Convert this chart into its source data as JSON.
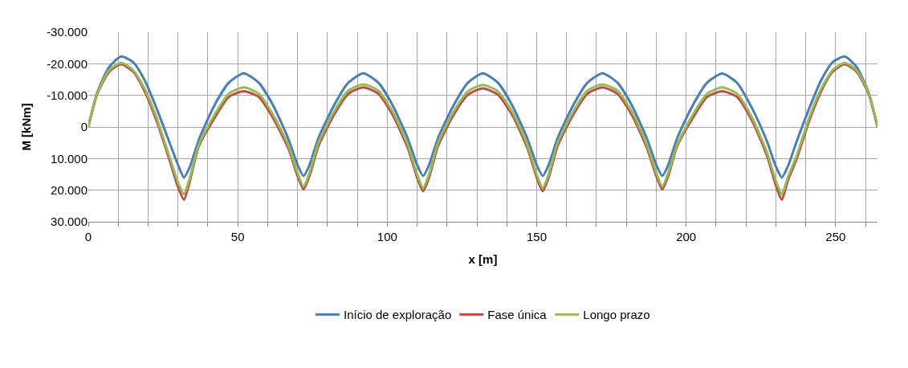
{
  "chart_data": {
    "type": "line",
    "xlabel": "x [m]",
    "ylabel": "M [kNm]",
    "x": [
      0,
      3,
      7,
      11,
      15,
      19,
      23,
      27,
      30,
      32,
      34,
      37,
      42,
      47,
      52,
      57,
      62,
      67,
      70,
      72,
      74,
      77,
      82,
      87,
      92,
      97,
      102,
      107,
      110,
      112,
      114,
      117,
      122,
      127,
      132,
      137,
      142,
      147,
      150,
      152,
      154,
      157,
      162,
      167,
      172,
      177,
      182,
      187,
      190,
      192,
      194,
      197,
      202,
      207,
      212,
      217,
      222,
      227,
      230,
      232,
      234,
      237,
      241,
      245,
      249,
      253,
      257,
      261,
      264
    ],
    "series": [
      {
        "name": "Início de exploração",
        "color": "#4a7ebb",
        "values": [
          0,
          -11000,
          -19000,
          -22300,
          -20500,
          -14500,
          -5500,
          4500,
          12000,
          16000,
          12500,
          4000,
          -6500,
          -14000,
          -17000,
          -14000,
          -6500,
          4000,
          12000,
          15500,
          12000,
          3500,
          -6500,
          -14000,
          -17000,
          -14000,
          -6500,
          4000,
          12000,
          15500,
          12000,
          3500,
          -6500,
          -14000,
          -17000,
          -14000,
          -6500,
          4000,
          12000,
          15500,
          12000,
          3500,
          -6500,
          -14000,
          -17000,
          -14000,
          -6500,
          4000,
          12000,
          15500,
          12000,
          3500,
          -6500,
          -14000,
          -16900,
          -14000,
          -6000,
          4500,
          12500,
          16000,
          12500,
          4500,
          -5500,
          -14500,
          -20500,
          -22300,
          -19000,
          -11000,
          0
        ]
      },
      {
        "name": "Fase única",
        "color": "#be4b48",
        "values": [
          0,
          -10500,
          -17500,
          -19800,
          -17500,
          -11000,
          -1500,
          10000,
          19000,
          23000,
          17000,
          6000,
          -2500,
          -9500,
          -11300,
          -9500,
          -2500,
          7000,
          15500,
          19700,
          15500,
          6000,
          -3500,
          -10500,
          -12500,
          -10500,
          -3500,
          7000,
          16000,
          20300,
          16000,
          6000,
          -3500,
          -10200,
          -12200,
          -10200,
          -3500,
          7000,
          16000,
          20300,
          16000,
          6000,
          -3500,
          -10500,
          -12500,
          -10500,
          -3500,
          7000,
          15500,
          19700,
          15500,
          6000,
          -2500,
          -9500,
          -11300,
          -9500,
          -2000,
          9000,
          18500,
          23000,
          17000,
          10000,
          -1500,
          -11000,
          -17500,
          -19800,
          -17500,
          -10500,
          0
        ]
      },
      {
        "name": "Longo prazo",
        "color": "#98b954",
        "values": [
          0,
          -10800,
          -18000,
          -20300,
          -18000,
          -11800,
          -2500,
          9000,
          17500,
          21300,
          16000,
          5500,
          -3500,
          -10500,
          -12500,
          -10500,
          -3500,
          6000,
          14500,
          18800,
          14500,
          5000,
          -4500,
          -11500,
          -13500,
          -11500,
          -4500,
          6000,
          15000,
          19300,
          15000,
          5000,
          -4500,
          -11300,
          -13300,
          -11300,
          -4500,
          6000,
          15000,
          19300,
          15000,
          5000,
          -4500,
          -11500,
          -13500,
          -11500,
          -4500,
          6000,
          14500,
          18800,
          14500,
          5500,
          -3500,
          -10500,
          -12500,
          -10500,
          -3000,
          8000,
          17000,
          21300,
          16000,
          9000,
          -2500,
          -11800,
          -18000,
          -20300,
          -18000,
          -10800,
          0
        ]
      }
    ],
    "xlim": [
      0,
      264
    ],
    "xticks": [
      0,
      {
        "value": 10,
        "label": null
      },
      {
        "value": 20,
        "label": null
      },
      {
        "value": 30,
        "label": null
      },
      {
        "value": 40,
        "label": null
      },
      50,
      {
        "value": 60,
        "label": null
      },
      {
        "value": 70,
        "label": null
      },
      {
        "value": 80,
        "label": null
      },
      {
        "value": 90,
        "label": null
      },
      100,
      {
        "value": 110,
        "label": null
      },
      {
        "value": 120,
        "label": null
      },
      {
        "value": 130,
        "label": null
      },
      {
        "value": 140,
        "label": null
      },
      150,
      {
        "value": 160,
        "label": null
      },
      {
        "value": 170,
        "label": null
      },
      {
        "value": 180,
        "label": null
      },
      {
        "value": 190,
        "label": null
      },
      200,
      {
        "value": 210,
        "label": null
      },
      {
        "value": 220,
        "label": null
      },
      {
        "value": 230,
        "label": null
      },
      {
        "value": 240,
        "label": null
      },
      250,
      {
        "value": 260,
        "label": null
      }
    ],
    "ylim": [
      30000,
      -30000
    ],
    "yticks": [
      {
        "value": -30000,
        "label": "-30.000"
      },
      {
        "value": -20000,
        "label": "-20.000"
      },
      {
        "value": -10000,
        "label": "-10.000"
      },
      0,
      {
        "value": 10000,
        "label": "10.000"
      },
      {
        "value": 20000,
        "label": "20.000"
      },
      {
        "value": 30000,
        "label": "30.000"
      }
    ],
    "grid": true,
    "legend": "bottom",
    "marker": "none",
    "line_style": "solid"
  }
}
